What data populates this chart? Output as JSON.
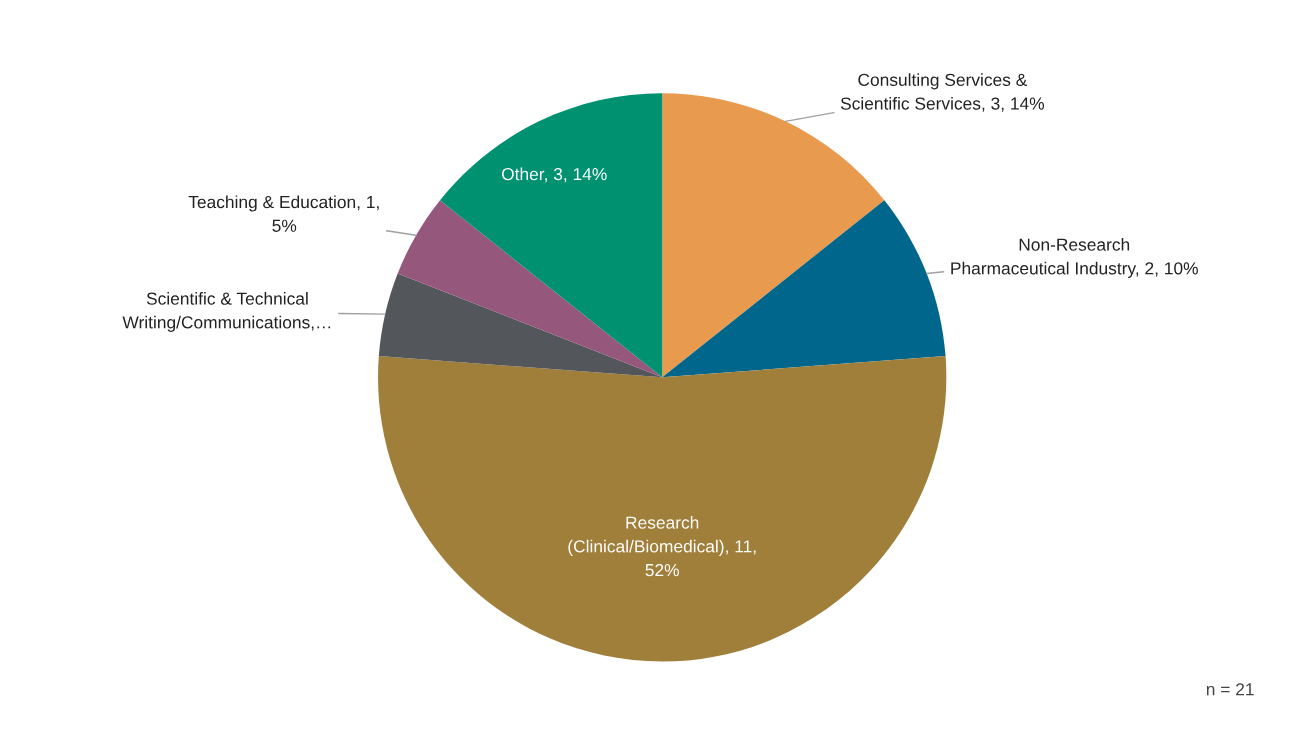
{
  "chart_data": {
    "type": "pie",
    "categories": [
      "Consulting Services &\nScientific Services",
      "Non-Research\nPharmaceutical Industry",
      "Research\n(Clinical/Biomedical)",
      "Scientific & Technical\nWriting/Communications,…",
      "Teaching & Education",
      "Other"
    ],
    "values": [
      3,
      2,
      11,
      1,
      1,
      3
    ],
    "value_labels": [
      "3, 14%",
      "2, 10%",
      "11,\n52%",
      null,
      "1,\n5%",
      "3, 14%"
    ],
    "colors": [
      "#e89b4f",
      "#00668c",
      "#a07f3a",
      "#53565a",
      "#96577d",
      "#009170"
    ],
    "annotations": [
      "n = 21"
    ],
    "legend": false
  }
}
